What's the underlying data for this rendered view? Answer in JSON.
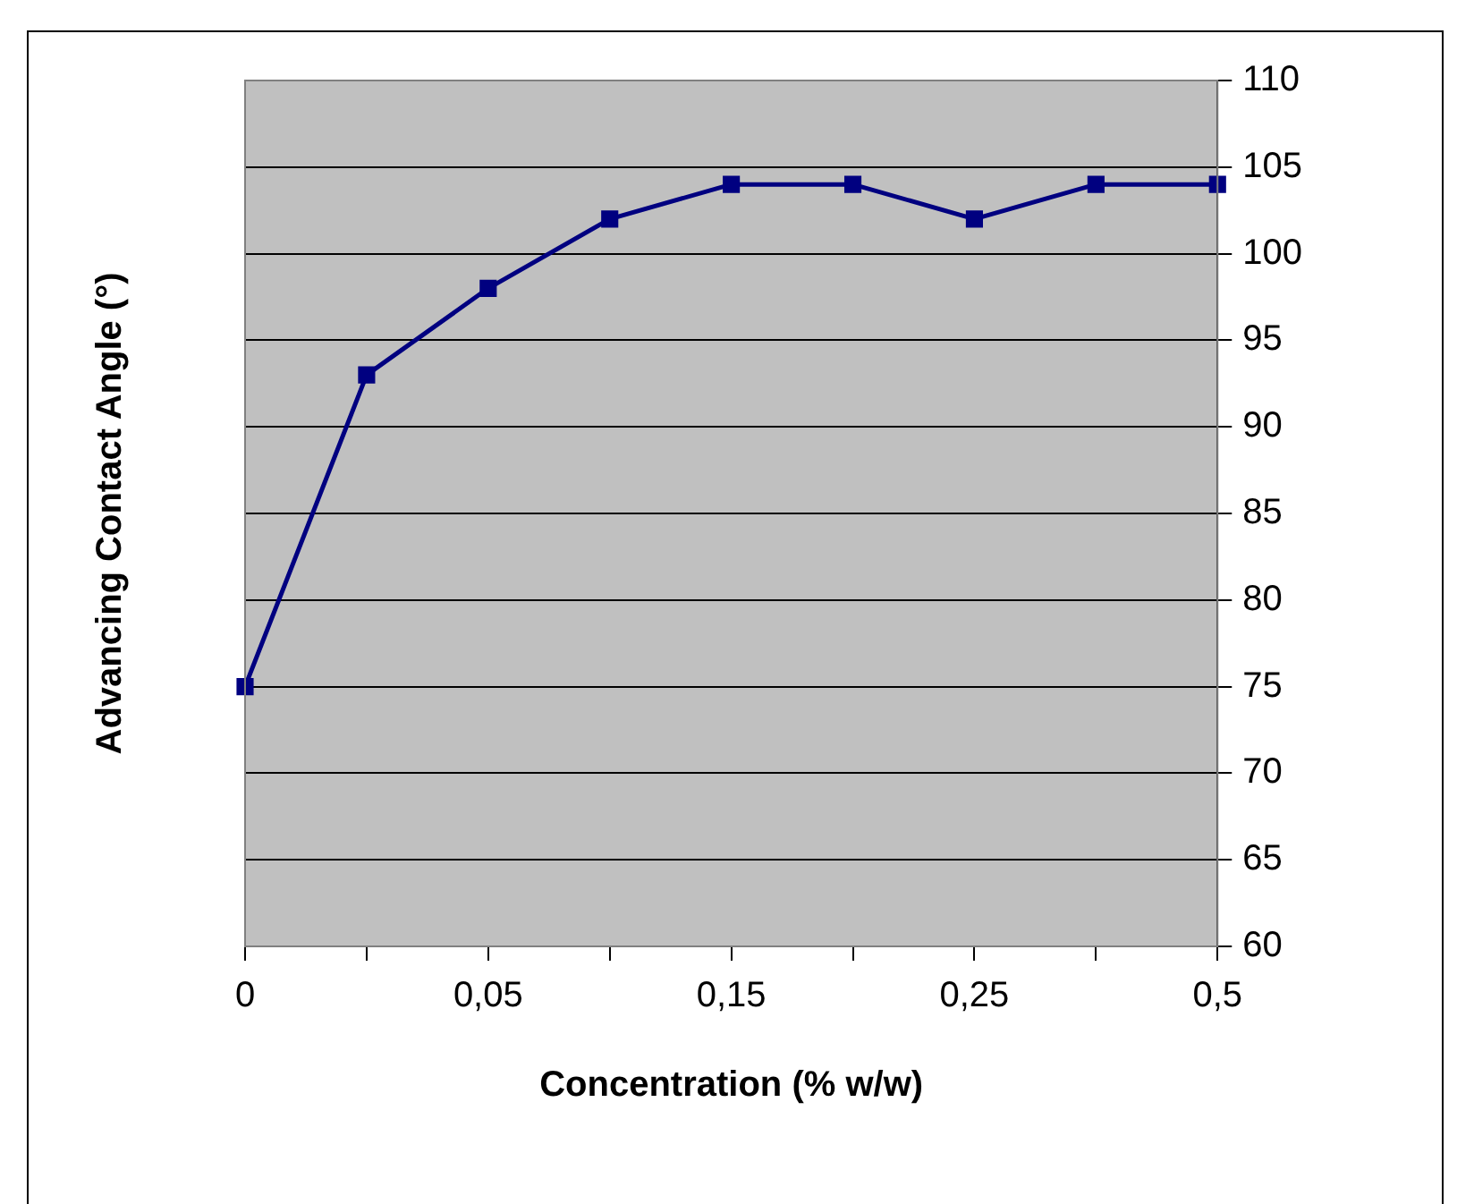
{
  "chart_data": {
    "type": "line",
    "xlabel": "Concentration (% w/w)",
    "ylabel": "Advancing Contact Angle (°)",
    "categories": [
      "0",
      null,
      "0,05",
      null,
      "0,15",
      null,
      "0,25",
      null,
      "0,5"
    ],
    "series": [
      {
        "color": "#000080",
        "values": [
          75,
          93,
          98,
          102,
          104,
          104,
          102,
          104,
          104
        ]
      }
    ],
    "ylim": [
      60,
      110
    ],
    "yticks": [
      60,
      65,
      70,
      75,
      80,
      85,
      90,
      95,
      100,
      105,
      110
    ],
    "grid": "y",
    "legend": false,
    "marker": "square",
    "line_style": "solid"
  }
}
